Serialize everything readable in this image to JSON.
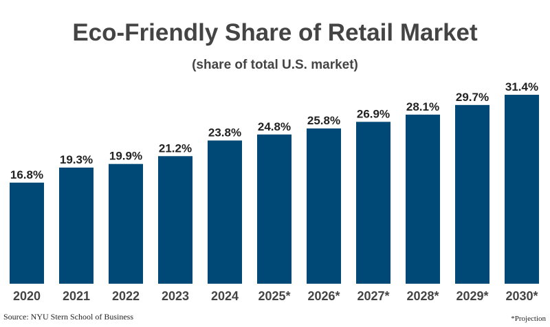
{
  "chart_data": {
    "type": "bar",
    "title": "Eco-Friendly Share of Retail Market",
    "subtitle": "(share of total U.S. market)",
    "categories": [
      "2020",
      "2021",
      "2022",
      "2023",
      "2024",
      "2025*",
      "2026*",
      "2027*",
      "2028*",
      "2029*",
      "2030*"
    ],
    "values": [
      16.8,
      19.3,
      19.9,
      21.2,
      23.8,
      24.8,
      25.8,
      26.9,
      28.1,
      29.7,
      31.4
    ],
    "data_labels": [
      "16.8%",
      "19.3%",
      "19.9%",
      "21.2%",
      "23.8%",
      "24.8%",
      "25.8%",
      "26.9%",
      "28.1%",
      "29.7%",
      "31.4%"
    ],
    "xlabel": "",
    "ylabel": "",
    "ylim": [
      0,
      35
    ],
    "grid": false,
    "bar_color": "#004876",
    "source": "Source: NYU Stern School of Business",
    "note": "*Projection"
  }
}
